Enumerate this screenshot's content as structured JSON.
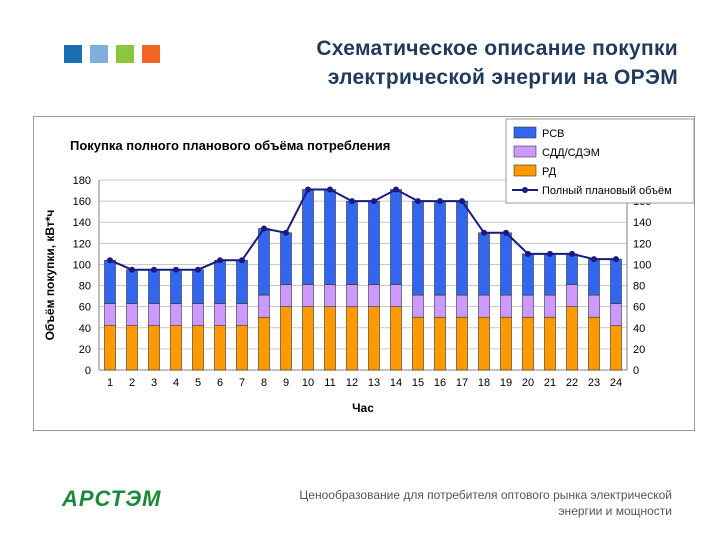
{
  "slide": {
    "title_line1": "Схематическое описание покупки",
    "title_line2": "электрической энергии на ОРЭМ",
    "footer_line1": "Ценообразование для потребителя оптового рынка электрической",
    "footer_line2": "энергии и мощности",
    "logo_text": "АРСТЭМ"
  },
  "colors": {
    "square1": "#1a6fb5",
    "square2": "#7fb0dc",
    "square3": "#8cc63f",
    "square4": "#f26522",
    "title": "#1f3a5a",
    "logo": "#1a8a3a",
    "rsv": "#3366ee",
    "sdd": "#cc99ff",
    "rd": "#ff9900",
    "line": "#1a1a80"
  },
  "chart_data": {
    "type": "bar",
    "subtype": "stacked-bar-with-line",
    "title": "Покупка полного планового объёма потребления",
    "xlabel": "Час",
    "ylabel": "Объём покупки, кВт*ч",
    "ylim": [
      0,
      180
    ],
    "yticks": [
      0,
      20,
      40,
      60,
      80,
      100,
      120,
      140,
      160,
      180
    ],
    "y2ticks": [
      0,
      20,
      40,
      60,
      80,
      100,
      120,
      140,
      160,
      180
    ],
    "grid": true,
    "legend_position": "top-right",
    "categories": [
      "1",
      "2",
      "3",
      "4",
      "5",
      "6",
      "7",
      "8",
      "9",
      "10",
      "11",
      "12",
      "13",
      "14",
      "15",
      "16",
      "17",
      "18",
      "19",
      "20",
      "21",
      "22",
      "23",
      "24"
    ],
    "series": [
      {
        "name": "РСВ",
        "kind": "bar",
        "values": [
          41,
          32,
          32,
          32,
          32,
          41,
          41,
          63,
          49,
          90,
          90,
          79,
          79,
          90,
          89,
          89,
          89,
          59,
          59,
          39,
          39,
          29,
          34,
          42
        ]
      },
      {
        "name": "СДД/СДЭМ",
        "kind": "bar",
        "values": [
          21,
          21,
          21,
          21,
          21,
          21,
          21,
          21,
          21,
          21,
          21,
          21,
          21,
          21,
          21,
          21,
          21,
          21,
          21,
          21,
          21,
          21,
          21,
          21
        ]
      },
      {
        "name": "РД",
        "kind": "bar",
        "values": [
          42,
          42,
          42,
          42,
          42,
          42,
          42,
          50,
          60,
          60,
          60,
          60,
          60,
          60,
          50,
          50,
          50,
          50,
          50,
          50,
          50,
          60,
          50,
          42
        ]
      },
      {
        "name": "Полный плановый объём",
        "kind": "line",
        "values": [
          104,
          95,
          95,
          95,
          95,
          104,
          104,
          134,
          130,
          171,
          171,
          160,
          160,
          171,
          160,
          160,
          160,
          130,
          130,
          110,
          110,
          110,
          105,
          105
        ]
      }
    ]
  }
}
